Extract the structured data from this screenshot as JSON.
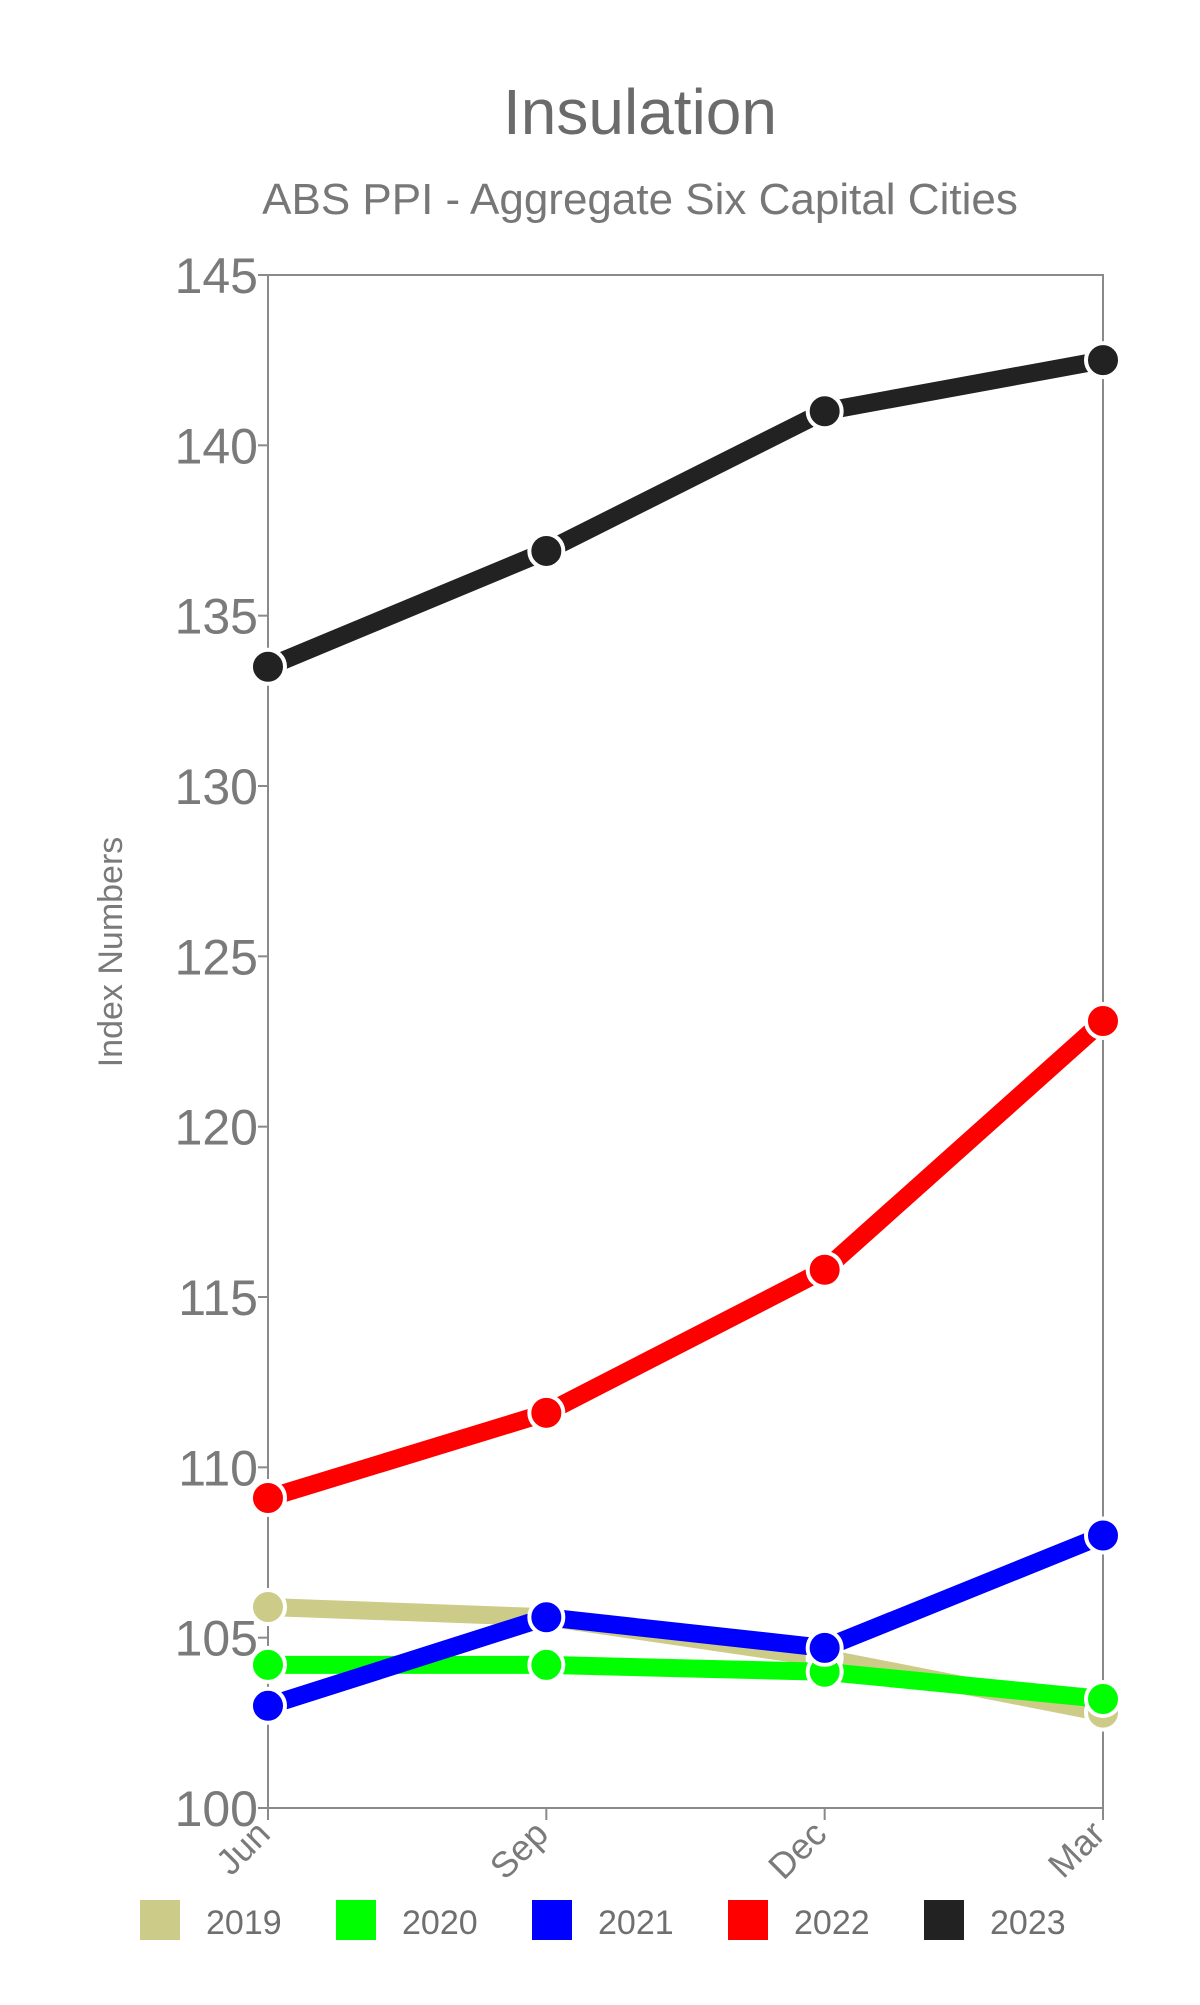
{
  "chart_data": {
    "type": "line",
    "title": "Insulation",
    "subtitle": "ABS PPI - Aggregate Six Capital Cities",
    "xlabel": "",
    "ylabel": "Index Numbers",
    "categories": [
      "Jun",
      "Sep",
      "Dec",
      "Mar"
    ],
    "ylim": [
      100,
      145
    ],
    "yticks": [
      100,
      105,
      110,
      115,
      120,
      125,
      130,
      135,
      140,
      145
    ],
    "grid": false,
    "legend_position": "bottom",
    "series": [
      {
        "name": "2019",
        "color": "#cccc88",
        "values": [
          105.9,
          105.6,
          104.4,
          102.8
        ]
      },
      {
        "name": "2020",
        "color": "#00ff00",
        "values": [
          104.2,
          104.2,
          104.0,
          103.2
        ]
      },
      {
        "name": "2021",
        "color": "#0000ff",
        "values": [
          103.0,
          105.6,
          104.7,
          108.0
        ]
      },
      {
        "name": "2022",
        "color": "#ff0000",
        "values": [
          109.1,
          111.6,
          115.8,
          123.1
        ]
      },
      {
        "name": "2023",
        "color": "#222222",
        "values": [
          133.5,
          136.9,
          141.0,
          142.5
        ]
      }
    ]
  }
}
